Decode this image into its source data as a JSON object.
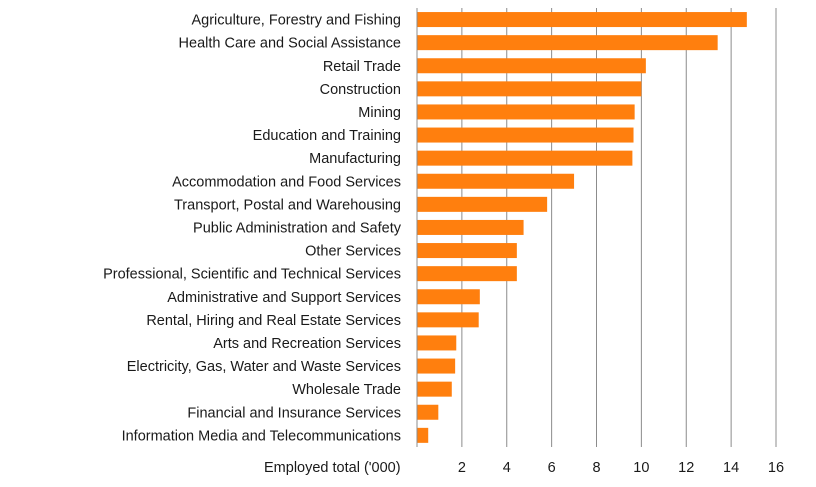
{
  "chart_data": {
    "type": "bar",
    "orientation": "horizontal",
    "categories": [
      "Agriculture, Forestry and Fishing",
      "Health Care and Social Assistance",
      "Retail Trade",
      "Construction",
      "Mining",
      "Education and Training",
      "Manufacturing",
      "Accommodation and Food Services",
      "Transport, Postal and Warehousing",
      "Public Administration and Safety",
      "Other Services",
      "Professional, Scientific and Technical Services",
      "Administrative and Support Services",
      "Rental, Hiring and Real Estate Services",
      "Arts and Recreation Services",
      "Electricity, Gas, Water and Waste Services",
      "Wholesale Trade",
      "Financial and Insurance Services",
      "Information Media and Telecommunications"
    ],
    "values": [
      14.7,
      13.4,
      10.2,
      10.0,
      9.7,
      9.65,
      9.6,
      7.0,
      5.8,
      4.75,
      4.45,
      4.45,
      2.8,
      2.75,
      1.75,
      1.7,
      1.55,
      0.95,
      0.5
    ],
    "xlabel": "Employed total ('000)",
    "xlim": [
      0,
      16
    ],
    "xticks": [
      "2",
      "4",
      "6",
      "8",
      "10",
      "12",
      "14",
      "16"
    ],
    "grid": "vertical",
    "bar_color": "#ff7f0e",
    "grid_color": "#8c8c8c"
  }
}
